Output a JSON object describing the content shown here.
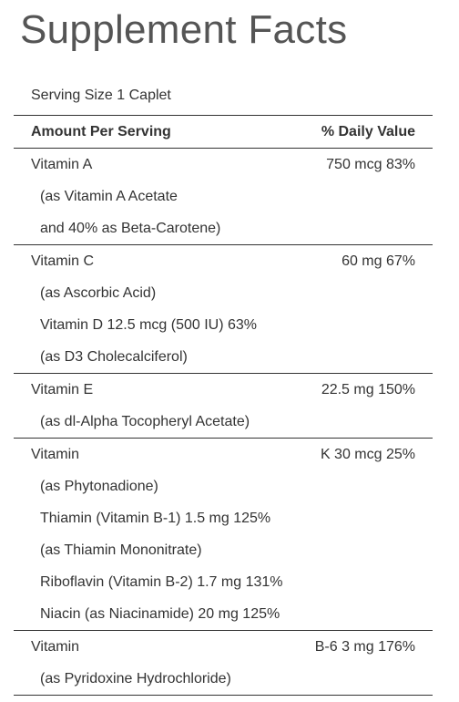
{
  "title": "Supplement Facts",
  "serving_size": "Serving Size 1 Caplet",
  "header": {
    "left": "Amount Per Serving",
    "right": "% Daily Value"
  },
  "groups": [
    {
      "name": "Vitamin A",
      "amount": "750 mcg 83%",
      "lines": [
        "(as Vitamin A Acetate",
        "and 40% as Beta-Carotene)"
      ]
    },
    {
      "name": "Vitamin C",
      "amount": "60 mg 67%",
      "lines": [
        "(as Ascorbic Acid)",
        "Vitamin D 12.5 mcg (500 IU) 63%",
        "(as D3 Cholecalciferol)"
      ]
    },
    {
      "name": "Vitamin E",
      "amount": "22.5 mg 150%",
      "lines": [
        "(as dl-Alpha Tocopheryl Acetate)"
      ]
    },
    {
      "name": "Vitamin",
      "amount": "K 30 mcg 25%",
      "lines": [
        "(as Phytonadione)",
        "Thiamin (Vitamin B-1) 1.5 mg 125%",
        "(as Thiamin Mononitrate)",
        "Riboflavin (Vitamin B-2) 1.7 mg 131%",
        "Niacin (as Niacinamide) 20 mg 125%"
      ]
    },
    {
      "name": "Vitamin",
      "amount": "B-6 3 mg 176%",
      "lines": [
        "(as Pyridoxine Hydrochloride)"
      ]
    }
  ]
}
